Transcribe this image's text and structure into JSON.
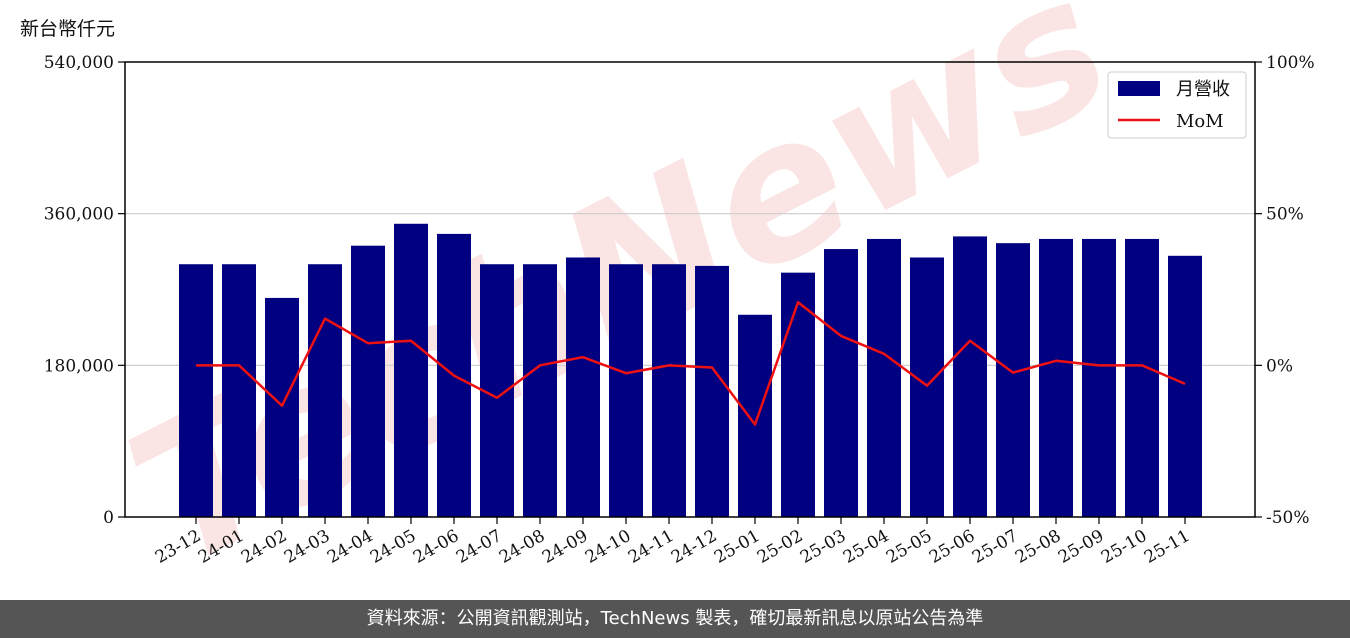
{
  "unit_label": "新台幣仟元",
  "footer_text": "資料來源：公開資訊觀測站，TechNews 製表，確切最新訊息以原站公告為準",
  "watermark_text": "TechNews",
  "colors": {
    "bar": "#000080",
    "line": "#ee1111",
    "grid": "#cccccc",
    "footer_bg": "#555555"
  },
  "chart_data": {
    "type": "bar",
    "categories": [
      "23-12",
      "24-01",
      "24-02",
      "24-03",
      "24-04",
      "24-05",
      "24-06",
      "24-07",
      "24-08",
      "24-09",
      "24-10",
      "24-11",
      "24-12",
      "25-01",
      "25-02",
      "25-03",
      "25-04",
      "25-05",
      "25-06",
      "25-07",
      "25-08",
      "25-09",
      "25-10",
      "25-11"
    ],
    "series": [
      {
        "name": "月營收",
        "type": "bar",
        "axis": "left",
        "values": [
          300000,
          300000,
          260000,
          300000,
          322000,
          348000,
          336000,
          300000,
          300000,
          308000,
          300000,
          300000,
          298000,
          240000,
          290000,
          318000,
          330000,
          308000,
          333000,
          325000,
          330000,
          330000,
          330000,
          310000
        ]
      },
      {
        "name": "MoM",
        "type": "line",
        "axis": "right",
        "values": [
          0.0,
          0.0,
          -13.3,
          15.4,
          7.3,
          8.1,
          -3.4,
          -10.7,
          0.0,
          2.7,
          -2.6,
          0.0,
          -0.7,
          -19.5,
          20.8,
          9.7,
          3.8,
          -6.7,
          8.1,
          -2.4,
          1.5,
          0.0,
          0.0,
          -6.1
        ]
      }
    ],
    "left_axis": {
      "ylim": [
        0,
        540000
      ],
      "ticks": [
        0,
        180000,
        360000,
        540000
      ],
      "tick_labels": [
        "0",
        "180,000",
        "360,000",
        "540,000"
      ]
    },
    "right_axis": {
      "ylim": [
        -50,
        100
      ],
      "ticks": [
        -50,
        0,
        50,
        100
      ],
      "tick_labels": [
        "-50%",
        "0%",
        "50%",
        "100%"
      ]
    },
    "grid": "horizontal",
    "legend_position": "top-right"
  }
}
